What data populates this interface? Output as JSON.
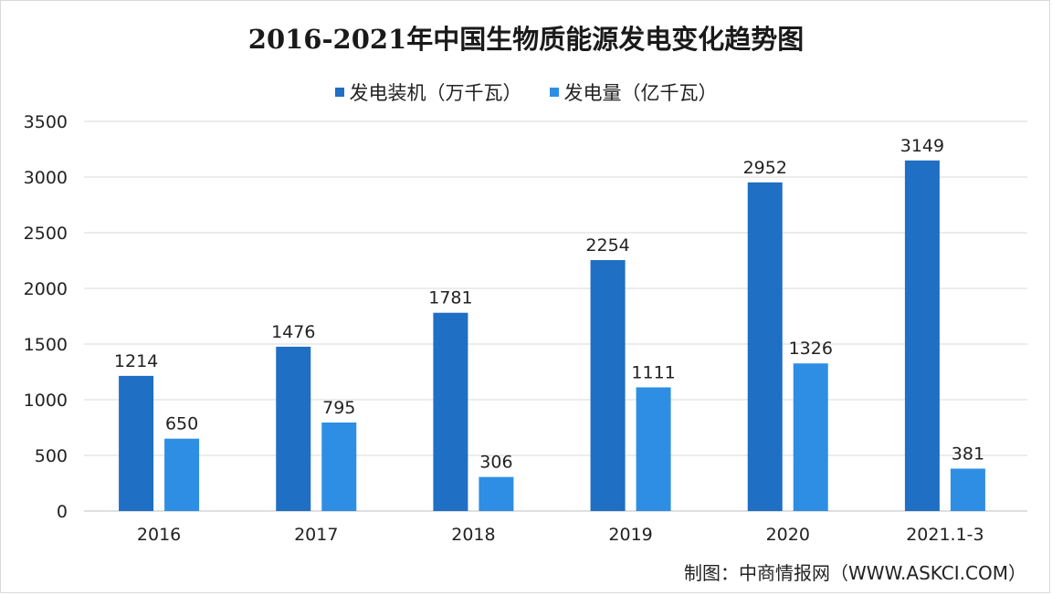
{
  "chart_data": {
    "type": "bar",
    "title": "2016-2021年中国生物质能源发电变化趋势图",
    "categories": [
      "2016",
      "2017",
      "2018",
      "2019",
      "2020",
      "2021.1-3"
    ],
    "series": [
      {
        "name": "发电装机（万千瓦）",
        "values": [
          1214,
          1476,
          1781,
          2254,
          2952,
          3149
        ],
        "color": "#1f6fc4"
      },
      {
        "name": "发电量（亿千瓦）",
        "values": [
          650,
          795,
          306,
          1111,
          1326,
          381
        ],
        "color": "#2e8ee3"
      }
    ],
    "ylim": [
      0,
      3500
    ],
    "yticks": [
      0,
      500,
      1000,
      1500,
      2000,
      2500,
      3000,
      3500
    ],
    "grid": true,
    "legend_position": "top-center"
  },
  "source": "制图：中商情报网（WWW.ASKCI.COM）"
}
